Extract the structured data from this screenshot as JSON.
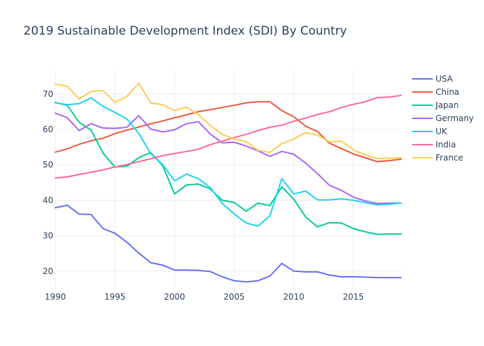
{
  "chart_data": {
    "type": "line",
    "title": "2019 Sustainable Development Index (SDI) By Country",
    "xlabel": "",
    "ylabel": "",
    "x": [
      1990,
      1991,
      1992,
      1993,
      1994,
      1995,
      1996,
      1997,
      1998,
      1999,
      2000,
      2001,
      2002,
      2003,
      2004,
      2005,
      2006,
      2007,
      2008,
      2009,
      2010,
      2011,
      2012,
      2013,
      2014,
      2015,
      2016,
      2017,
      2018,
      2019
    ],
    "xlim": [
      1990,
      2019
    ],
    "ylim": [
      14.5,
      77
    ],
    "x_ticks": [
      1990,
      1995,
      2000,
      2005,
      2010,
      2015
    ],
    "y_ticks": [
      20,
      30,
      40,
      50,
      60,
      70
    ],
    "grid": true,
    "legend_position": "right",
    "series": [
      {
        "name": "USA",
        "color": "#636efa",
        "values": [
          37.9,
          38.6,
          36.1,
          36.0,
          32.0,
          30.7,
          28.2,
          25.1,
          22.4,
          21.7,
          20.3,
          20.3,
          20.2,
          19.9,
          18.4,
          17.3,
          17.0,
          17.3,
          18.6,
          22.2,
          20.0,
          19.8,
          19.8,
          18.9,
          18.4,
          18.4,
          18.3,
          18.2,
          18.2,
          18.2
        ]
      },
      {
        "name": "China",
        "color": "#ef553b",
        "values": [
          53.6,
          54.5,
          55.8,
          56.8,
          57.5,
          58.8,
          59.8,
          60.7,
          61.6,
          62.4,
          63.3,
          64.1,
          65.0,
          65.6,
          66.2,
          66.8,
          67.5,
          67.8,
          67.8,
          65.3,
          63.6,
          60.9,
          59.4,
          56.1,
          54.6,
          53.1,
          52.0,
          50.9,
          51.2,
          51.6
        ]
      },
      {
        "name": "Japan",
        "color": "#00cc96",
        "values": [
          67.6,
          66.8,
          62.0,
          59.8,
          53.3,
          49.4,
          49.6,
          52.0,
          53.5,
          49.8,
          41.8,
          44.3,
          44.6,
          43.2,
          40.0,
          39.4,
          36.9,
          39.2,
          38.5,
          43.8,
          40.3,
          35.3,
          32.5,
          33.7,
          33.6,
          32.0,
          31.1,
          30.4,
          30.5,
          30.5
        ]
      },
      {
        "name": "Germany",
        "color": "#ab63fa",
        "values": [
          64.6,
          63.3,
          59.7,
          61.6,
          60.4,
          60.3,
          60.6,
          63.9,
          60.1,
          59.3,
          59.9,
          61.6,
          62.2,
          58.7,
          56.2,
          56.4,
          55.3,
          54.0,
          52.4,
          53.8,
          53.0,
          50.5,
          47.5,
          44.2,
          42.8,
          40.9,
          39.8,
          39.1,
          39.2,
          39.2
        ]
      },
      {
        "name": "UK",
        "color": "#19d3f3",
        "values": [
          67.5,
          67.0,
          67.3,
          68.9,
          66.5,
          64.8,
          63.0,
          58.9,
          53.2,
          50.1,
          45.5,
          47.4,
          46.1,
          43.6,
          39.1,
          36.2,
          33.6,
          32.7,
          35.6,
          46.1,
          41.8,
          42.6,
          40.1,
          40.1,
          40.4,
          40.0,
          39.3,
          38.7,
          38.9,
          39.2
        ]
      },
      {
        "name": "India",
        "color": "#ff6692",
        "values": [
          46.3,
          46.6,
          47.3,
          47.9,
          48.6,
          49.4,
          50.1,
          50.9,
          51.7,
          52.6,
          53.2,
          53.8,
          54.4,
          55.7,
          56.7,
          57.7,
          58.6,
          59.7,
          60.6,
          61.2,
          62.3,
          63.2,
          64.2,
          65.0,
          66.2,
          67.1,
          67.8,
          69.0,
          69.1,
          69.6
        ]
      },
      {
        "name": "France",
        "color": "#fecb52",
        "values": [
          72.8,
          72.2,
          68.6,
          70.7,
          71.0,
          67.6,
          69.3,
          73.0,
          67.5,
          67.0,
          65.3,
          66.3,
          64.2,
          61.1,
          58.6,
          57.3,
          56.6,
          54.1,
          53.5,
          56.0,
          57.3,
          59.1,
          58.4,
          56.5,
          56.7,
          54.3,
          52.8,
          51.8,
          51.9,
          52.0
        ]
      }
    ]
  }
}
